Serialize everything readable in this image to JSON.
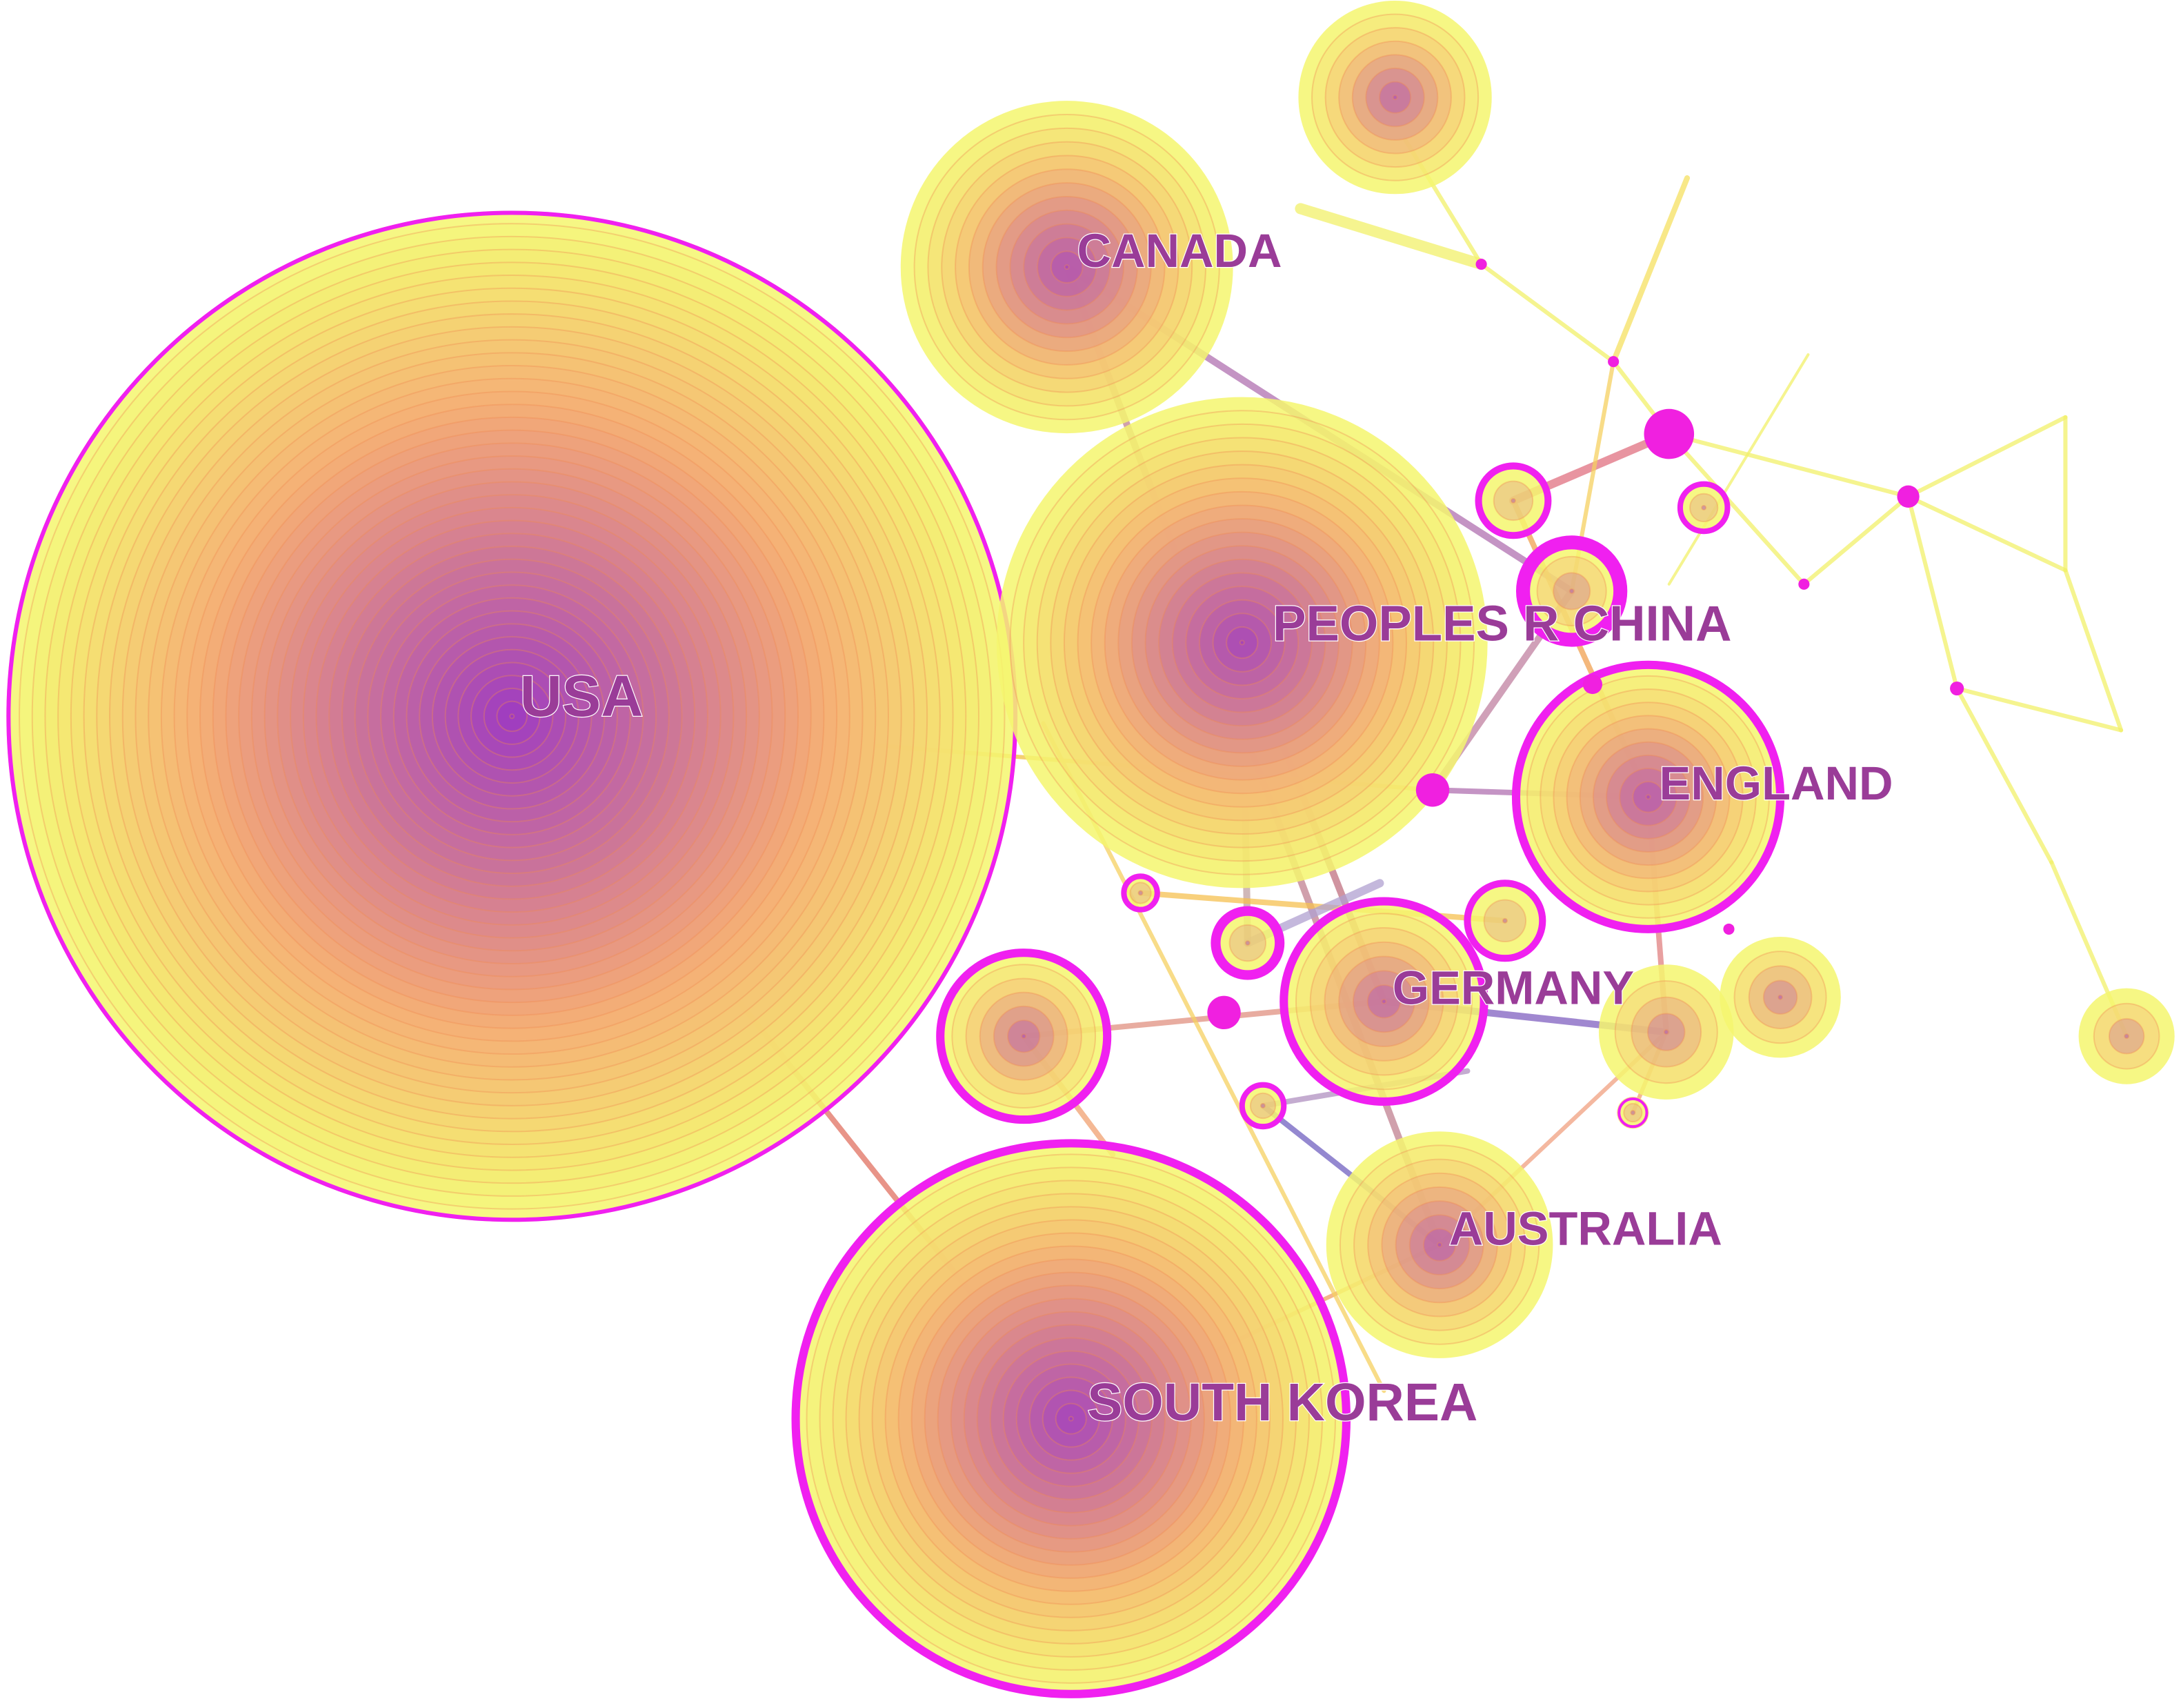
{
  "nodes": [
    {
      "label": "USA"
    },
    {
      "label": "CANADA"
    },
    {
      "label": "PEOPLES R CHINA"
    },
    {
      "label": "ENGLAND"
    },
    {
      "label": "GERMANY"
    },
    {
      "label": "AUSTRALIA"
    },
    {
      "label": "SOUTH KOREA"
    }
  ]
}
